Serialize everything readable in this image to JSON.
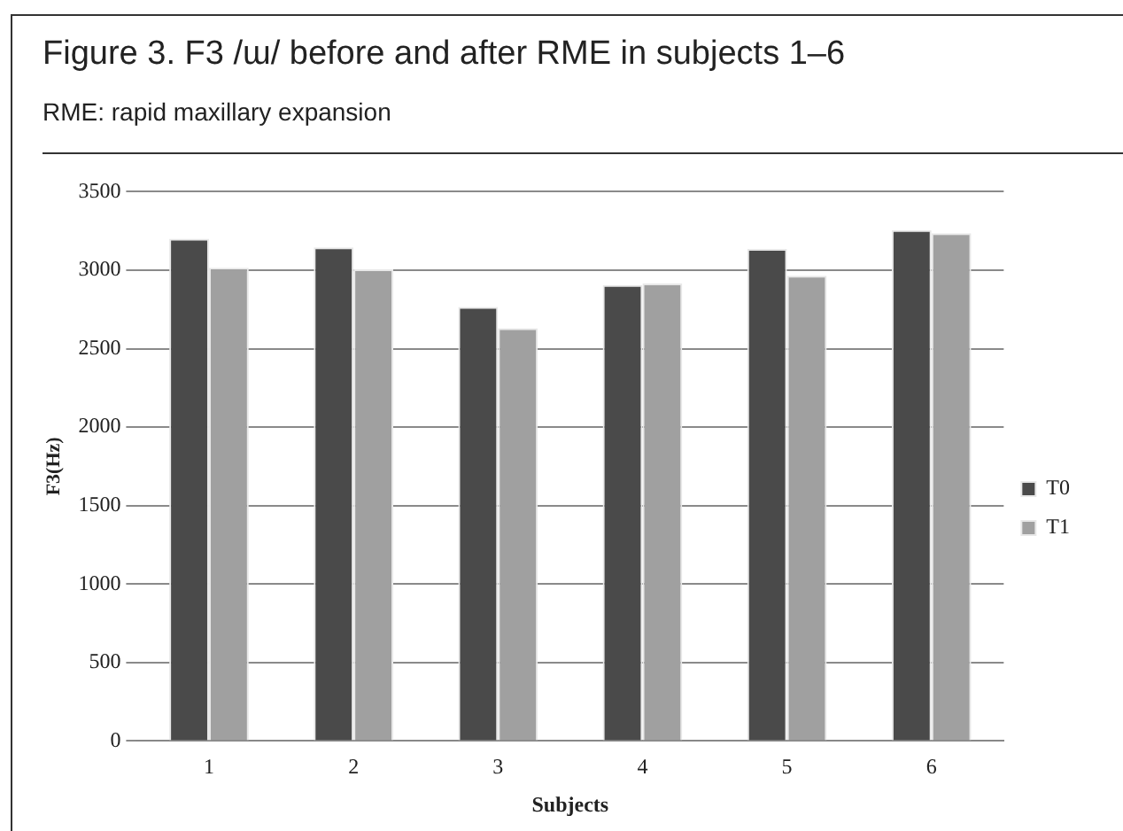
{
  "chart_data": {
    "type": "bar",
    "title": "Figure 3. F3 /ɯ/ before and after RME in subjects 1–6",
    "subtitle": "RME: rapid maxillary expansion",
    "xlabel": "Subjects",
    "ylabel": "F3(Hz)",
    "categories": [
      "1",
      "2",
      "3",
      "4",
      "5",
      "6"
    ],
    "series": [
      {
        "name": "T0",
        "color": "#4a4a4a",
        "values": [
          3200,
          3145,
          2765,
          2905,
          3135,
          3255
        ]
      },
      {
        "name": "T1",
        "color": "#a0a0a0",
        "values": [
          3015,
          3005,
          2630,
          2915,
          2965,
          3235
        ]
      }
    ],
    "ylim": [
      0,
      3500
    ],
    "yticks": [
      0,
      500,
      1000,
      1500,
      2000,
      2500,
      3000,
      3500
    ],
    "grid": "y",
    "legend": "right"
  }
}
